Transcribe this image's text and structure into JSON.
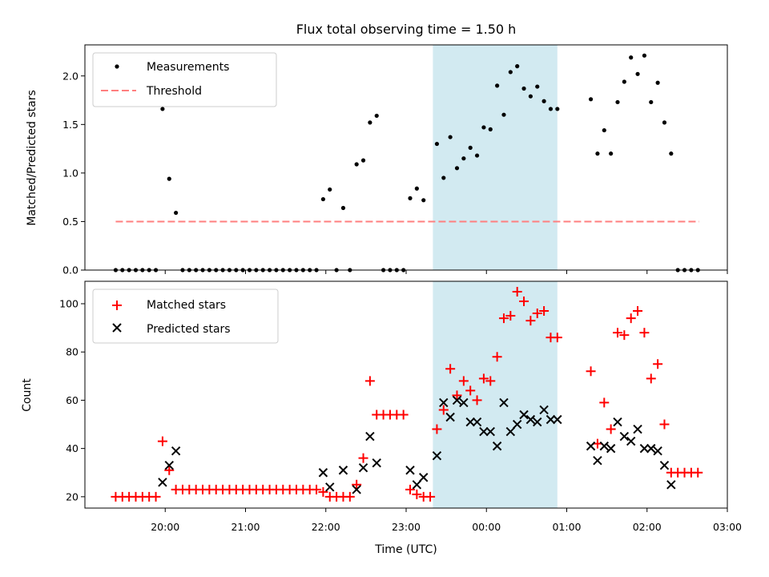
{
  "chart_data": [
    {
      "type": "scatter",
      "title": "Flux total observing time = 1.50 h",
      "ylabel": "Matched/Predicted stars",
      "ylim": [
        0,
        2.32
      ],
      "yticks": [
        0.0,
        0.5,
        1.0,
        1.5,
        2.0
      ],
      "ytick_labels": [
        "0.0",
        "0.5",
        "1.0",
        "1.5",
        "2.0"
      ],
      "legend": {
        "position": "top-left",
        "entries": [
          "Measurements",
          "Threshold"
        ]
      },
      "highlight_span": {
        "start": "23:20",
        "end": "00:53",
        "color": "#add8e6"
      },
      "threshold": {
        "name": "Threshold",
        "value": 0.5,
        "x_start": "19:23",
        "x_end": "02:39",
        "color": "#ff7f7f"
      },
      "series": [
        {
          "name": "Measurements",
          "color": "#000000",
          "marker": "dot",
          "points": [
            [
              "19:23",
              0
            ],
            [
              "19:28",
              0
            ],
            [
              "19:33",
              0
            ],
            [
              "19:38",
              0
            ],
            [
              "19:43",
              0
            ],
            [
              "19:48",
              0
            ],
            [
              "19:53",
              0
            ],
            [
              "19:58",
              1.66
            ],
            [
              "20:03",
              0.94
            ],
            [
              "20:08",
              0.59
            ],
            [
              "20:13",
              0
            ],
            [
              "20:18",
              0
            ],
            [
              "20:23",
              0
            ],
            [
              "20:28",
              0
            ],
            [
              "20:33",
              0
            ],
            [
              "20:38",
              0
            ],
            [
              "20:43",
              0
            ],
            [
              "20:48",
              0
            ],
            [
              "20:53",
              0
            ],
            [
              "20:58",
              0
            ],
            [
              "21:03",
              0
            ],
            [
              "21:08",
              0
            ],
            [
              "21:13",
              0
            ],
            [
              "21:18",
              0
            ],
            [
              "21:23",
              0
            ],
            [
              "21:28",
              0
            ],
            [
              "21:33",
              0
            ],
            [
              "21:38",
              0
            ],
            [
              "21:43",
              0
            ],
            [
              "21:48",
              0
            ],
            [
              "21:53",
              0
            ],
            [
              "21:58",
              0.73
            ],
            [
              "22:03",
              0.83
            ],
            [
              "22:08",
              0
            ],
            [
              "22:13",
              0.64
            ],
            [
              "22:18",
              0
            ],
            [
              "22:23",
              1.09
            ],
            [
              "22:28",
              1.13
            ],
            [
              "22:33",
              1.52
            ],
            [
              "22:38",
              1.59
            ],
            [
              "22:43",
              0
            ],
            [
              "22:48",
              0
            ],
            [
              "22:53",
              0
            ],
            [
              "22:58",
              0
            ],
            [
              "23:03",
              0.74
            ],
            [
              "23:08",
              0.84
            ],
            [
              "23:13",
              0.72
            ],
            [
              "23:23",
              1.3
            ],
            [
              "23:28",
              0.95
            ],
            [
              "23:33",
              1.37
            ],
            [
              "23:38",
              1.05
            ],
            [
              "23:43",
              1.15
            ],
            [
              "23:48",
              1.26
            ],
            [
              "23:53",
              1.18
            ],
            [
              "23:58",
              1.47
            ],
            [
              "00:03",
              1.45
            ],
            [
              "00:08",
              1.9
            ],
            [
              "00:13",
              1.6
            ],
            [
              "00:18",
              2.04
            ],
            [
              "00:23",
              2.1
            ],
            [
              "00:28",
              1.87
            ],
            [
              "00:33",
              1.79
            ],
            [
              "00:38",
              1.89
            ],
            [
              "00:43",
              1.74
            ],
            [
              "00:48",
              1.66
            ],
            [
              "00:53",
              1.66
            ],
            [
              "01:18",
              1.76
            ],
            [
              "01:23",
              1.2
            ],
            [
              "01:28",
              1.44
            ],
            [
              "01:33",
              1.2
            ],
            [
              "01:38",
              1.73
            ],
            [
              "01:43",
              1.94
            ],
            [
              "01:48",
              2.19
            ],
            [
              "01:53",
              2.02
            ],
            [
              "01:58",
              2.21
            ],
            [
              "02:03",
              1.73
            ],
            [
              "02:08",
              1.93
            ],
            [
              "02:13",
              1.52
            ],
            [
              "02:18",
              1.2
            ],
            [
              "02:23",
              0
            ],
            [
              "02:28",
              0
            ],
            [
              "02:33",
              0
            ],
            [
              "02:38",
              0
            ]
          ]
        }
      ]
    },
    {
      "type": "scatter",
      "xlabel": "Time (UTC)",
      "ylabel": "Count",
      "ylim": [
        15.3,
        109.3
      ],
      "yticks": [
        20,
        40,
        60,
        80,
        100
      ],
      "ytick_labels": [
        "20",
        "40",
        "60",
        "80",
        "100"
      ],
      "xlim": [
        "19:00",
        "03:00"
      ],
      "xticks": [
        "20:00",
        "21:00",
        "22:00",
        "23:00",
        "00:00",
        "01:00",
        "02:00",
        "03:00"
      ],
      "xtick_labels": [
        "20:00",
        "21:00",
        "22:00",
        "23:00",
        "00:00",
        "01:00",
        "02:00",
        "03:00"
      ],
      "legend": {
        "position": "top-left",
        "entries": [
          "Matched stars",
          "Predicted stars"
        ]
      },
      "highlight_span": {
        "start": "23:20",
        "end": "00:53",
        "color": "#add8e6"
      },
      "series": [
        {
          "name": "Matched stars",
          "color": "#ff0000",
          "marker": "plus",
          "points": [
            [
              "19:23",
              20
            ],
            [
              "19:28",
              20
            ],
            [
              "19:33",
              20
            ],
            [
              "19:38",
              20
            ],
            [
              "19:43",
              20
            ],
            [
              "19:48",
              20
            ],
            [
              "19:53",
              20
            ],
            [
              "19:58",
              43
            ],
            [
              "20:03",
              31
            ],
            [
              "20:08",
              23
            ],
            [
              "20:13",
              23
            ],
            [
              "20:18",
              23
            ],
            [
              "20:23",
              23
            ],
            [
              "20:28",
              23
            ],
            [
              "20:33",
              23
            ],
            [
              "20:38",
              23
            ],
            [
              "20:43",
              23
            ],
            [
              "20:48",
              23
            ],
            [
              "20:53",
              23
            ],
            [
              "20:58",
              23
            ],
            [
              "21:03",
              23
            ],
            [
              "21:08",
              23
            ],
            [
              "21:13",
              23
            ],
            [
              "21:18",
              23
            ],
            [
              "21:23",
              23
            ],
            [
              "21:28",
              23
            ],
            [
              "21:33",
              23
            ],
            [
              "21:38",
              23
            ],
            [
              "21:43",
              23
            ],
            [
              "21:48",
              23
            ],
            [
              "21:53",
              23
            ],
            [
              "21:58",
              22
            ],
            [
              "22:03",
              20
            ],
            [
              "22:08",
              20
            ],
            [
              "22:13",
              20
            ],
            [
              "22:18",
              20
            ],
            [
              "22:23",
              25
            ],
            [
              "22:28",
              36
            ],
            [
              "22:33",
              68
            ],
            [
              "22:38",
              54
            ],
            [
              "22:43",
              54
            ],
            [
              "22:48",
              54
            ],
            [
              "22:53",
              54
            ],
            [
              "22:58",
              54
            ],
            [
              "23:03",
              23
            ],
            [
              "23:08",
              21
            ],
            [
              "23:13",
              20
            ],
            [
              "23:18",
              20
            ],
            [
              "23:23",
              48
            ],
            [
              "23:28",
              56
            ],
            [
              "23:33",
              73
            ],
            [
              "23:38",
              62
            ],
            [
              "23:43",
              68
            ],
            [
              "23:48",
              64
            ],
            [
              "23:53",
              60
            ],
            [
              "23:58",
              69
            ],
            [
              "00:03",
              68
            ],
            [
              "00:08",
              78
            ],
            [
              "00:13",
              94
            ],
            [
              "00:18",
              95
            ],
            [
              "00:23",
              105
            ],
            [
              "00:28",
              101
            ],
            [
              "00:33",
              93
            ],
            [
              "00:38",
              96
            ],
            [
              "00:43",
              97
            ],
            [
              "00:48",
              86
            ],
            [
              "00:53",
              86
            ],
            [
              "01:18",
              72
            ],
            [
              "01:23",
              42
            ],
            [
              "01:28",
              59
            ],
            [
              "01:33",
              48
            ],
            [
              "01:38",
              88
            ],
            [
              "01:43",
              87
            ],
            [
              "01:48",
              94
            ],
            [
              "01:53",
              97
            ],
            [
              "01:58",
              88
            ],
            [
              "02:03",
              69
            ],
            [
              "02:08",
              75
            ],
            [
              "02:13",
              50
            ],
            [
              "02:18",
              30
            ],
            [
              "02:23",
              30
            ],
            [
              "02:28",
              30
            ],
            [
              "02:33",
              30
            ],
            [
              "02:38",
              30
            ]
          ]
        },
        {
          "name": "Predicted stars",
          "color": "#000000",
          "marker": "x",
          "points": [
            [
              "19:58",
              26
            ],
            [
              "20:03",
              33
            ],
            [
              "20:08",
              39
            ],
            [
              "21:58",
              30
            ],
            [
              "22:03",
              24
            ],
            [
              "22:13",
              31
            ],
            [
              "22:23",
              23
            ],
            [
              "22:28",
              32
            ],
            [
              "22:33",
              45
            ],
            [
              "22:38",
              34
            ],
            [
              "23:03",
              31
            ],
            [
              "23:08",
              25
            ],
            [
              "23:13",
              28
            ],
            [
              "23:23",
              37
            ],
            [
              "23:28",
              59
            ],
            [
              "23:33",
              53
            ],
            [
              "23:38",
              60
            ],
            [
              "23:43",
              59
            ],
            [
              "23:48",
              51
            ],
            [
              "23:53",
              51
            ],
            [
              "23:58",
              47
            ],
            [
              "00:03",
              47
            ],
            [
              "00:08",
              41
            ],
            [
              "00:13",
              59
            ],
            [
              "00:18",
              47
            ],
            [
              "00:23",
              50
            ],
            [
              "00:28",
              54
            ],
            [
              "00:33",
              52
            ],
            [
              "00:38",
              51
            ],
            [
              "00:43",
              56
            ],
            [
              "00:48",
              52
            ],
            [
              "00:53",
              52
            ],
            [
              "01:18",
              41
            ],
            [
              "01:23",
              35
            ],
            [
              "01:28",
              41
            ],
            [
              "01:33",
              40
            ],
            [
              "01:38",
              51
            ],
            [
              "01:43",
              45
            ],
            [
              "01:48",
              43
            ],
            [
              "01:53",
              48
            ],
            [
              "01:58",
              40
            ],
            [
              "02:03",
              40
            ],
            [
              "02:08",
              39
            ],
            [
              "02:13",
              33
            ],
            [
              "02:18",
              25
            ]
          ]
        }
      ]
    }
  ]
}
